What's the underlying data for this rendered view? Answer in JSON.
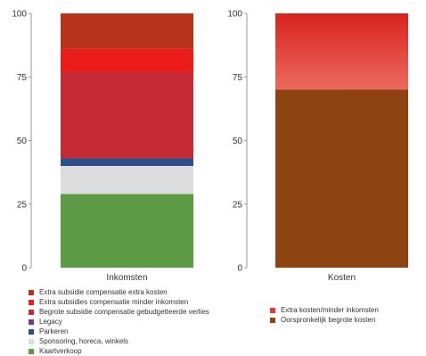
{
  "chart_data": [
    {
      "type": "bar",
      "stacked": true,
      "categories": [
        "Inkomsten"
      ],
      "ylim": [
        0,
        100
      ],
      "yticks": [
        0,
        25,
        50,
        75,
        100
      ],
      "legend_position": "bottom",
      "series": [
        {
          "name": "Kaartverkoop",
          "color": "#5c9a45",
          "values": [
            29
          ]
        },
        {
          "name": "Sponsoring, horeca, winkels",
          "color": "#dcdcdc",
          "values": [
            11
          ]
        },
        {
          "name": "Parkeren",
          "color": "#2c4f8c",
          "values": [
            3
          ]
        },
        {
          "name": "Legacy",
          "color": "#7a3b7a",
          "values": [
            0
          ]
        },
        {
          "name": "Begrote subsidie  compensatie gebudgetteerde verlies",
          "color": "#c52a35",
          "values": [
            34
          ]
        },
        {
          "name": "Extra subsidies compensatie minder inkomsten",
          "color": "#ec1c1c",
          "values": [
            9
          ]
        },
        {
          "name": "Extra subsidie compensatie extra kosten",
          "color": "#b8331c",
          "values": [
            14
          ]
        }
      ]
    },
    {
      "type": "bar",
      "stacked": true,
      "categories": [
        "Kosten"
      ],
      "ylim": [
        0,
        100
      ],
      "yticks": [
        0,
        25,
        50,
        75,
        100
      ],
      "legend_position": "bottom",
      "series": [
        {
          "name": "Oorspronkelijk begrote kosten",
          "color": "#8e4412",
          "values": [
            70
          ]
        },
        {
          "name": "Extra kosten/minder inkomsten",
          "color": "#e23b2e",
          "values": [
            30
          ]
        }
      ]
    }
  ]
}
